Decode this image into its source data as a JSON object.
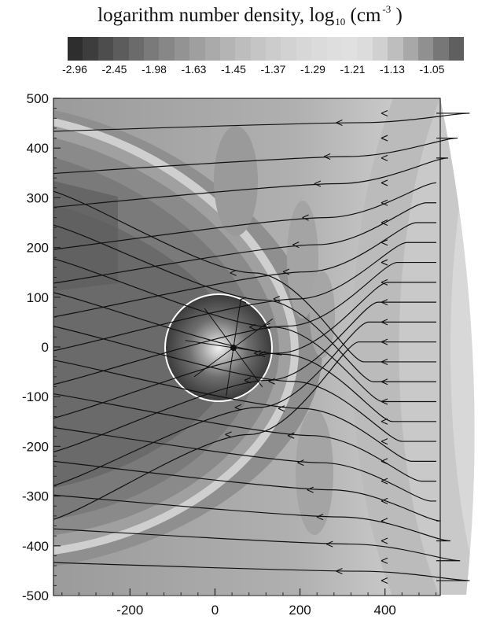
{
  "title": {
    "text": "logarithm  number density, log",
    "subscript": "10",
    "unit_open": "(cm",
    "superscript": "-3",
    "unit_close": ")"
  },
  "colorbar": {
    "labels": [
      "-2.96",
      "-2.45",
      "-1.98",
      "-1.63",
      "-1.45",
      "-1.37",
      "-1.29",
      "-1.21",
      "-1.13",
      "-1.05"
    ],
    "colors": [
      "#2e2e2e",
      "#3d3d3d",
      "#4d4d4d",
      "#5c5c5c",
      "#6b6b6b",
      "#7a7a7a",
      "#878787",
      "#939393",
      "#9f9f9f",
      "#aaaaaa",
      "#b4b4b4",
      "#bdbdbd",
      "#c5c5c5",
      "#cccccc",
      "#d2d2d2",
      "#d7d7d7",
      "#dbdbdb",
      "#dedede",
      "#e0e0e0",
      "#dcdcdc",
      "#d0d0d0",
      "#bebebe",
      "#a8a8a8",
      "#909090",
      "#777777",
      "#5f5f5f"
    ]
  },
  "chart_data": {
    "type": "heatmap",
    "title": "logarithm number density, log10 (cm-3)",
    "xlim": [
      -380,
      530
    ],
    "ylim": [
      -500,
      500
    ],
    "x_ticks": [
      -200,
      0,
      200,
      400
    ],
    "y_ticks": [
      -500,
      -400,
      -300,
      -200,
      -100,
      0,
      100,
      200,
      300,
      400,
      500
    ],
    "colorbar_levels": [
      -2.96,
      -2.45,
      -1.98,
      -1.63,
      -1.45,
      -1.37,
      -1.29,
      -1.21,
      -1.13,
      -1.05
    ],
    "obstacle_circle": {
      "center": [
        -25,
        0
      ],
      "radius": 105
    },
    "bow_shock": {
      "nose_x": 130,
      "asymptote_y_at_left": [
        460,
        -320
      ]
    },
    "streamlines": {
      "incoming_y": [
        470,
        420,
        380,
        330,
        290,
        250,
        210,
        170,
        130,
        90,
        50,
        10,
        -30,
        -70,
        -110,
        -150,
        -190,
        -230,
        -270,
        -310,
        -350,
        -390,
        -430,
        -470
      ],
      "direction": "right-to-left"
    },
    "grid": false
  }
}
